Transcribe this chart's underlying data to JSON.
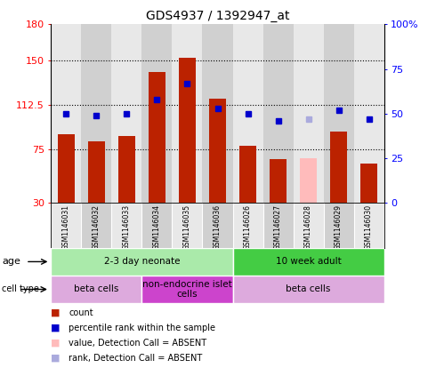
{
  "title": "GDS4937 / 1392947_at",
  "samples": [
    "GSM1146031",
    "GSM1146032",
    "GSM1146033",
    "GSM1146034",
    "GSM1146035",
    "GSM1146036",
    "GSM1146026",
    "GSM1146027",
    "GSM1146028",
    "GSM1146029",
    "GSM1146030"
  ],
  "counts": [
    88,
    82,
    86,
    140,
    152,
    118,
    78,
    67,
    0,
    90,
    63
  ],
  "absent_counts": [
    0,
    0,
    0,
    0,
    0,
    0,
    0,
    0,
    68,
    0,
    0
  ],
  "ranks": [
    50,
    49,
    50,
    58,
    67,
    53,
    50,
    46,
    0,
    52,
    47
  ],
  "absent_ranks": [
    0,
    0,
    0,
    0,
    0,
    0,
    0,
    0,
    47,
    0,
    0
  ],
  "ylim_left": [
    30,
    180
  ],
  "ylim_right": [
    0,
    100
  ],
  "yticks_left": [
    30,
    75,
    112.5,
    150,
    180
  ],
  "yticks_right": [
    0,
    25,
    50,
    75,
    100
  ],
  "ytick_labels_left": [
    "30",
    "75",
    "112.5",
    "150",
    "180"
  ],
  "ytick_labels_right": [
    "0",
    "25",
    "50",
    "75",
    "100%"
  ],
  "bar_color": "#bb2200",
  "bar_absent_color": "#ffbbbb",
  "dot_color": "#0000cc",
  "dot_absent_color": "#aaaadd",
  "stripe_colors": [
    "#e8e8e8",
    "#d0d0d0"
  ],
  "age_groups": [
    {
      "label": "2-3 day neonate",
      "start": 0,
      "end": 5,
      "color": "#aaeaaa"
    },
    {
      "label": "10 week adult",
      "start": 6,
      "end": 10,
      "color": "#44cc44"
    }
  ],
  "cell_type_groups": [
    {
      "label": "beta cells",
      "start": 0,
      "end": 2,
      "color": "#ddaadd"
    },
    {
      "label": "non-endocrine islet\ncells",
      "start": 3,
      "end": 5,
      "color": "#cc44cc"
    },
    {
      "label": "beta cells",
      "start": 6,
      "end": 10,
      "color": "#ddaadd"
    }
  ],
  "legend_items": [
    {
      "label": "count",
      "color": "#bb2200"
    },
    {
      "label": "percentile rank within the sample",
      "color": "#0000cc"
    },
    {
      "label": "value, Detection Call = ABSENT",
      "color": "#ffbbbb"
    },
    {
      "label": "rank, Detection Call = ABSENT",
      "color": "#aaaadd"
    }
  ],
  "grid_yvals": [
    75,
    112.5,
    150
  ],
  "bar_width": 0.55,
  "dot_size": 5
}
